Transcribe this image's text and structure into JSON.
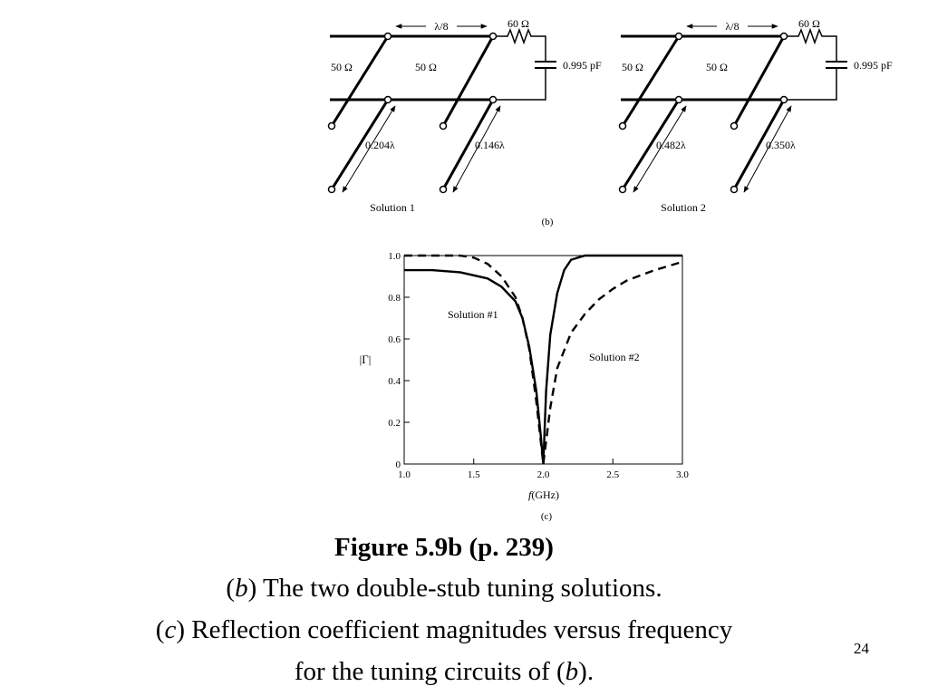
{
  "circuits": {
    "panel_label": "(b)",
    "wavelength_label": "λ/8",
    "solutions": [
      {
        "name": "Solution 1",
        "line_impedance_left": "50 Ω",
        "line_impedance_mid": "50 Ω",
        "load_resistor": "60 Ω",
        "load_capacitor": "0.995 pF",
        "stub1_length": "0.204λ",
        "stub2_length": "0.146λ"
      },
      {
        "name": "Solution 2",
        "line_impedance_left": "50 Ω",
        "line_impedance_mid": "50 Ω",
        "load_resistor": "60 Ω",
        "load_capacitor": "0.995 pF",
        "stub1_length": "0.482λ",
        "stub2_length": "0.350λ"
      }
    ]
  },
  "chart_data": {
    "type": "line",
    "panel_label": "(c)",
    "ylabel": "|Γ|",
    "xlabel_italic": "f",
    "xlabel_rest": "(GHz)",
    "xlim": [
      1.0,
      3.0
    ],
    "ylim": [
      0,
      1.0
    ],
    "x_ticks": [
      "1.0",
      "1.5",
      "2.0",
      "2.5",
      "3.0"
    ],
    "y_ticks": [
      "0",
      "0.2",
      "0.4",
      "0.6",
      "0.8",
      "1.0"
    ],
    "grid": false,
    "series": [
      {
        "name": "Solution #1",
        "style": "solid",
        "x": [
          1.0,
          1.2,
          1.4,
          1.6,
          1.7,
          1.8,
          1.85,
          1.9,
          1.95,
          1.98,
          2.0,
          2.02,
          2.05,
          2.1,
          2.15,
          2.2,
          2.3,
          2.5,
          3.0
        ],
        "y": [
          0.93,
          0.93,
          0.92,
          0.89,
          0.85,
          0.78,
          0.7,
          0.56,
          0.35,
          0.15,
          0.0,
          0.35,
          0.62,
          0.82,
          0.93,
          0.98,
          1.0,
          1.0,
          1.0
        ]
      },
      {
        "name": "Solution #2",
        "style": "dashed",
        "x": [
          1.0,
          1.4,
          1.5,
          1.6,
          1.7,
          1.8,
          1.85,
          1.9,
          1.95,
          2.0,
          2.05,
          2.1,
          2.2,
          2.3,
          2.4,
          2.5,
          2.6,
          2.8,
          3.0
        ],
        "y": [
          1.0,
          1.0,
          0.99,
          0.96,
          0.9,
          0.8,
          0.7,
          0.55,
          0.3,
          0.0,
          0.27,
          0.46,
          0.63,
          0.72,
          0.79,
          0.84,
          0.88,
          0.93,
          0.97
        ]
      }
    ]
  },
  "caption": {
    "title": "Figure 5.9b  (p. 239)",
    "line_b_open": "(",
    "line_b_letter": "b",
    "line_b_text": ") The two double-stub tuning solutions.",
    "line_c_open": "(",
    "line_c_letter": "c",
    "line_c_text": ") Reflection coefficient magnitudes versus frequency",
    "line_d_text": "for the tuning circuits of (",
    "line_d_letter": "b",
    "line_d_close": ")."
  },
  "slide_number": "24"
}
